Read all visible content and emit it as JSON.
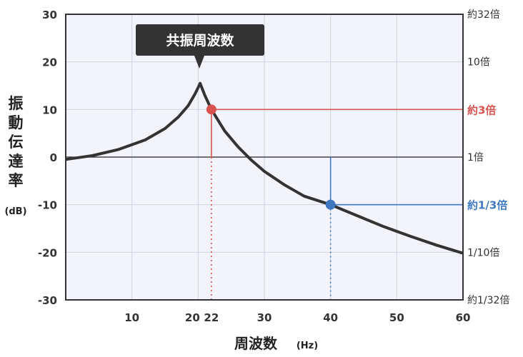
{
  "chart_data": {
    "type": "line",
    "xlabel": "周波数",
    "xlabel_unit": "(Hz)",
    "ylabel": "振動伝達率",
    "ylabel_unit": "(dB)",
    "xlim": [
      0,
      60
    ],
    "ylim": [
      -30,
      30
    ],
    "x_ticks": [
      10,
      20,
      30,
      40,
      50,
      60
    ],
    "y_ticks": [
      30,
      20,
      10,
      0,
      -10,
      -20,
      -30
    ],
    "right_ticks": [
      {
        "value": 30,
        "label": "約32倍"
      },
      {
        "value": 20,
        "label": "10倍"
      },
      {
        "value": 0,
        "label": "1倍"
      },
      {
        "value": -20,
        "label": "1/10倍"
      },
      {
        "value": -30,
        "label": "約1/32倍"
      }
    ],
    "grid": true,
    "series": [
      {
        "x": [
          0,
          4,
          8,
          12,
          15,
          17,
          18.5,
          19.5,
          20,
          20.3,
          21,
          22,
          24,
          26,
          28,
          30,
          33,
          36,
          40,
          44,
          48,
          52,
          56,
          60
        ],
        "y": [
          -0.5,
          0.3,
          1.6,
          3.6,
          6.0,
          8.4,
          10.8,
          13.2,
          14.6,
          15.5,
          13.0,
          10.0,
          5.5,
          2.2,
          -0.6,
          -3.0,
          -5.8,
          -8.2,
          -10.0,
          -12.3,
          -14.6,
          -16.6,
          -18.5,
          -20.2
        ],
        "color": "#333333"
      }
    ],
    "annotations": [
      {
        "label": "共振周波数",
        "x": 20.3,
        "y": 15.5
      },
      {
        "x": 22,
        "y": 10,
        "x_label": "22",
        "right_label": "約3倍",
        "color": "#d9534f"
      },
      {
        "x": 40,
        "y": -10,
        "x_label": "40",
        "right_label": "約1/3倍",
        "color": "#3f78c1"
      }
    ],
    "colors": {
      "plot_bg": "#f2f3fb",
      "grid": "#cfd3e3",
      "curve": "#333333"
    }
  }
}
